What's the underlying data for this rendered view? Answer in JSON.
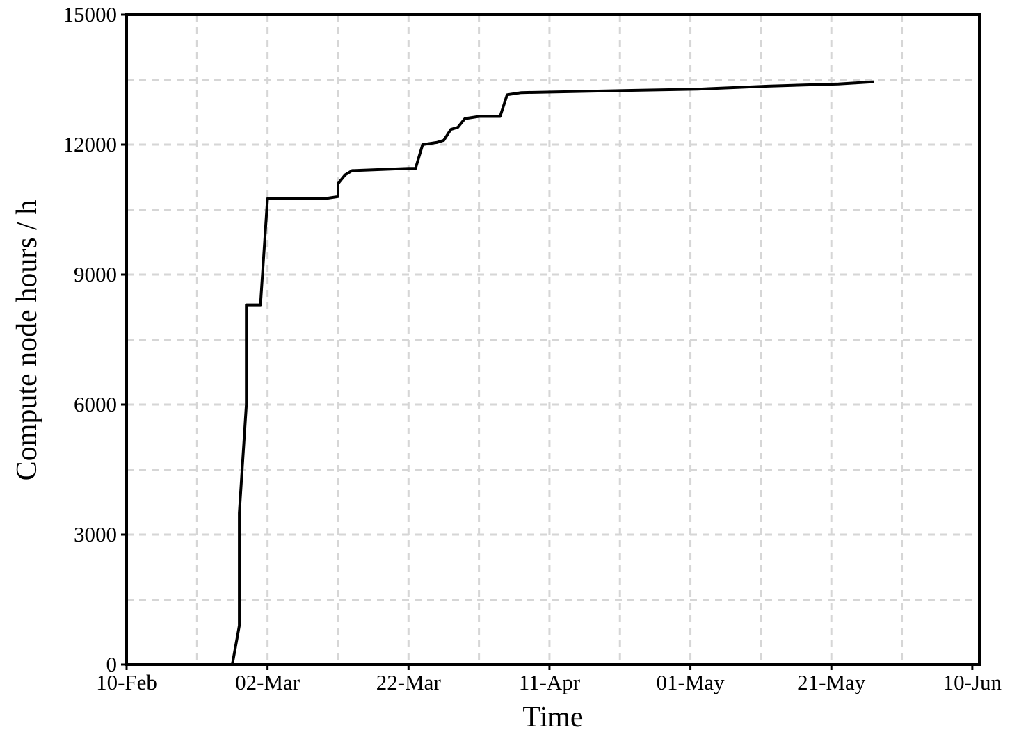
{
  "chart_data": {
    "type": "line",
    "title": "",
    "xlabel": "Time",
    "ylabel": "Compute node hours / h",
    "xlim": [
      "2020-02-10",
      "2020-06-10"
    ],
    "ylim": [
      0,
      15000
    ],
    "x_ticks": [
      "10-Feb",
      "02-Mar",
      "22-Mar",
      "11-Apr",
      "01-May",
      "21-May",
      "10-Jun"
    ],
    "y_ticks": [
      0,
      3000,
      6000,
      9000,
      12000,
      15000
    ],
    "grid": true,
    "grid_style": "dashed",
    "series": [
      {
        "color": "#000000",
        "x": [
          "2020-02-10",
          "2020-02-25",
          "2020-02-26",
          "2020-02-26",
          "2020-02-27",
          "2020-02-27",
          "2020-02-28",
          "2020-02-29",
          "2020-03-01",
          "2020-03-09",
          "2020-03-11",
          "2020-03-11",
          "2020-03-12",
          "2020-03-13",
          "2020-03-21",
          "2020-03-22",
          "2020-03-23",
          "2020-03-25",
          "2020-03-26",
          "2020-03-27",
          "2020-03-28",
          "2020-03-29",
          "2020-03-31",
          "2020-04-03",
          "2020-04-04",
          "2020-04-06",
          "2020-04-21",
          "2020-05-01",
          "2020-05-11",
          "2020-05-21",
          "2020-05-26"
        ],
        "y": [
          0,
          0,
          900,
          3500,
          6000,
          8300,
          8300,
          8300,
          10750,
          10750,
          10800,
          11100,
          11300,
          11400,
          11450,
          11450,
          12000,
          12050,
          12100,
          12350,
          12400,
          12600,
          12650,
          12650,
          13150,
          13200,
          13250,
          13280,
          13350,
          13400,
          13450
        ]
      }
    ]
  }
}
